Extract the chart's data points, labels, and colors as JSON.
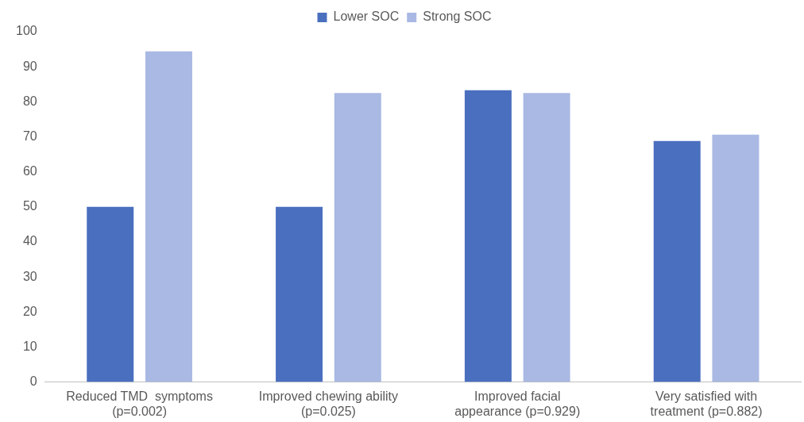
{
  "chart_data": {
    "type": "bar",
    "categories": [
      "Reduced TMD  symptoms\n(p=0.002)",
      "Improved chewing ability\n(p=0.025)",
      "Improved facial\nappearance (p=0.929)",
      "Very satisfied with\ntreatment (p=0.882)"
    ],
    "series": [
      {
        "name": "Lower SOC",
        "color": "#4a6fbf",
        "values": [
          50,
          50,
          83.3,
          68.8
        ]
      },
      {
        "name": "Strong SOC",
        "color": "#a9b9e3",
        "values": [
          94.4,
          82.5,
          82.5,
          70.6
        ]
      }
    ],
    "ylim": [
      0,
      100
    ],
    "yticks": [
      0,
      10,
      20,
      30,
      40,
      50,
      60,
      70,
      80,
      90,
      100
    ],
    "grid": false,
    "legend": "top"
  }
}
